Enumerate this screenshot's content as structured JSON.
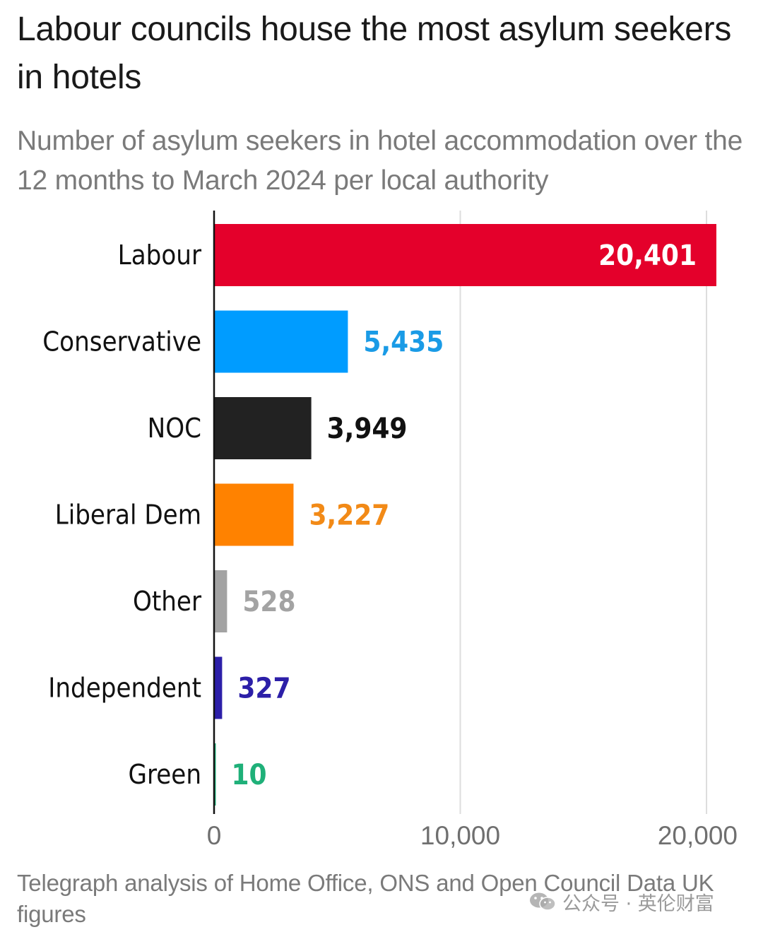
{
  "title": "Labour councils house the most asylum seekers in hotels",
  "subtitle": "Number of asylum seekers in hotel accommodation over the 12 months to March 2024 per local authority",
  "source": "Telegraph analysis of Home Office, ONS and Open Council Data UK figures",
  "watermark": {
    "text": "公众号 · 英伦财富",
    "icon": "wechat-icon"
  },
  "chart_data": {
    "type": "bar",
    "orientation": "horizontal",
    "categories": [
      "Labour",
      "Conservative",
      "NOC",
      "Liberal Dem",
      "Other",
      "Independent",
      "Green"
    ],
    "values": [
      20401,
      5435,
      3949,
      3227,
      528,
      327,
      10
    ],
    "value_labels": [
      "20,401",
      "5,435",
      "3,949",
      "3,227",
      "528",
      "327",
      "10"
    ],
    "colors": [
      "#e4002b",
      "#009cff",
      "#222222",
      "#ff8200",
      "#a3a3a3",
      "#2c1fa8",
      "#1fb079"
    ],
    "label_colors": [
      "#ffffff",
      "#1a9be6",
      "#111111",
      "#f28a17",
      "#a3a3a3",
      "#2c1fa8",
      "#1fb079"
    ],
    "label_inside": [
      true,
      false,
      false,
      false,
      false,
      false,
      false
    ],
    "xlim": [
      0,
      20401
    ],
    "xticks": [
      0,
      10000,
      20000
    ],
    "xtick_labels": [
      "0",
      "10,000",
      "20,000"
    ],
    "grid": true,
    "xlabel": "",
    "ylabel": ""
  }
}
